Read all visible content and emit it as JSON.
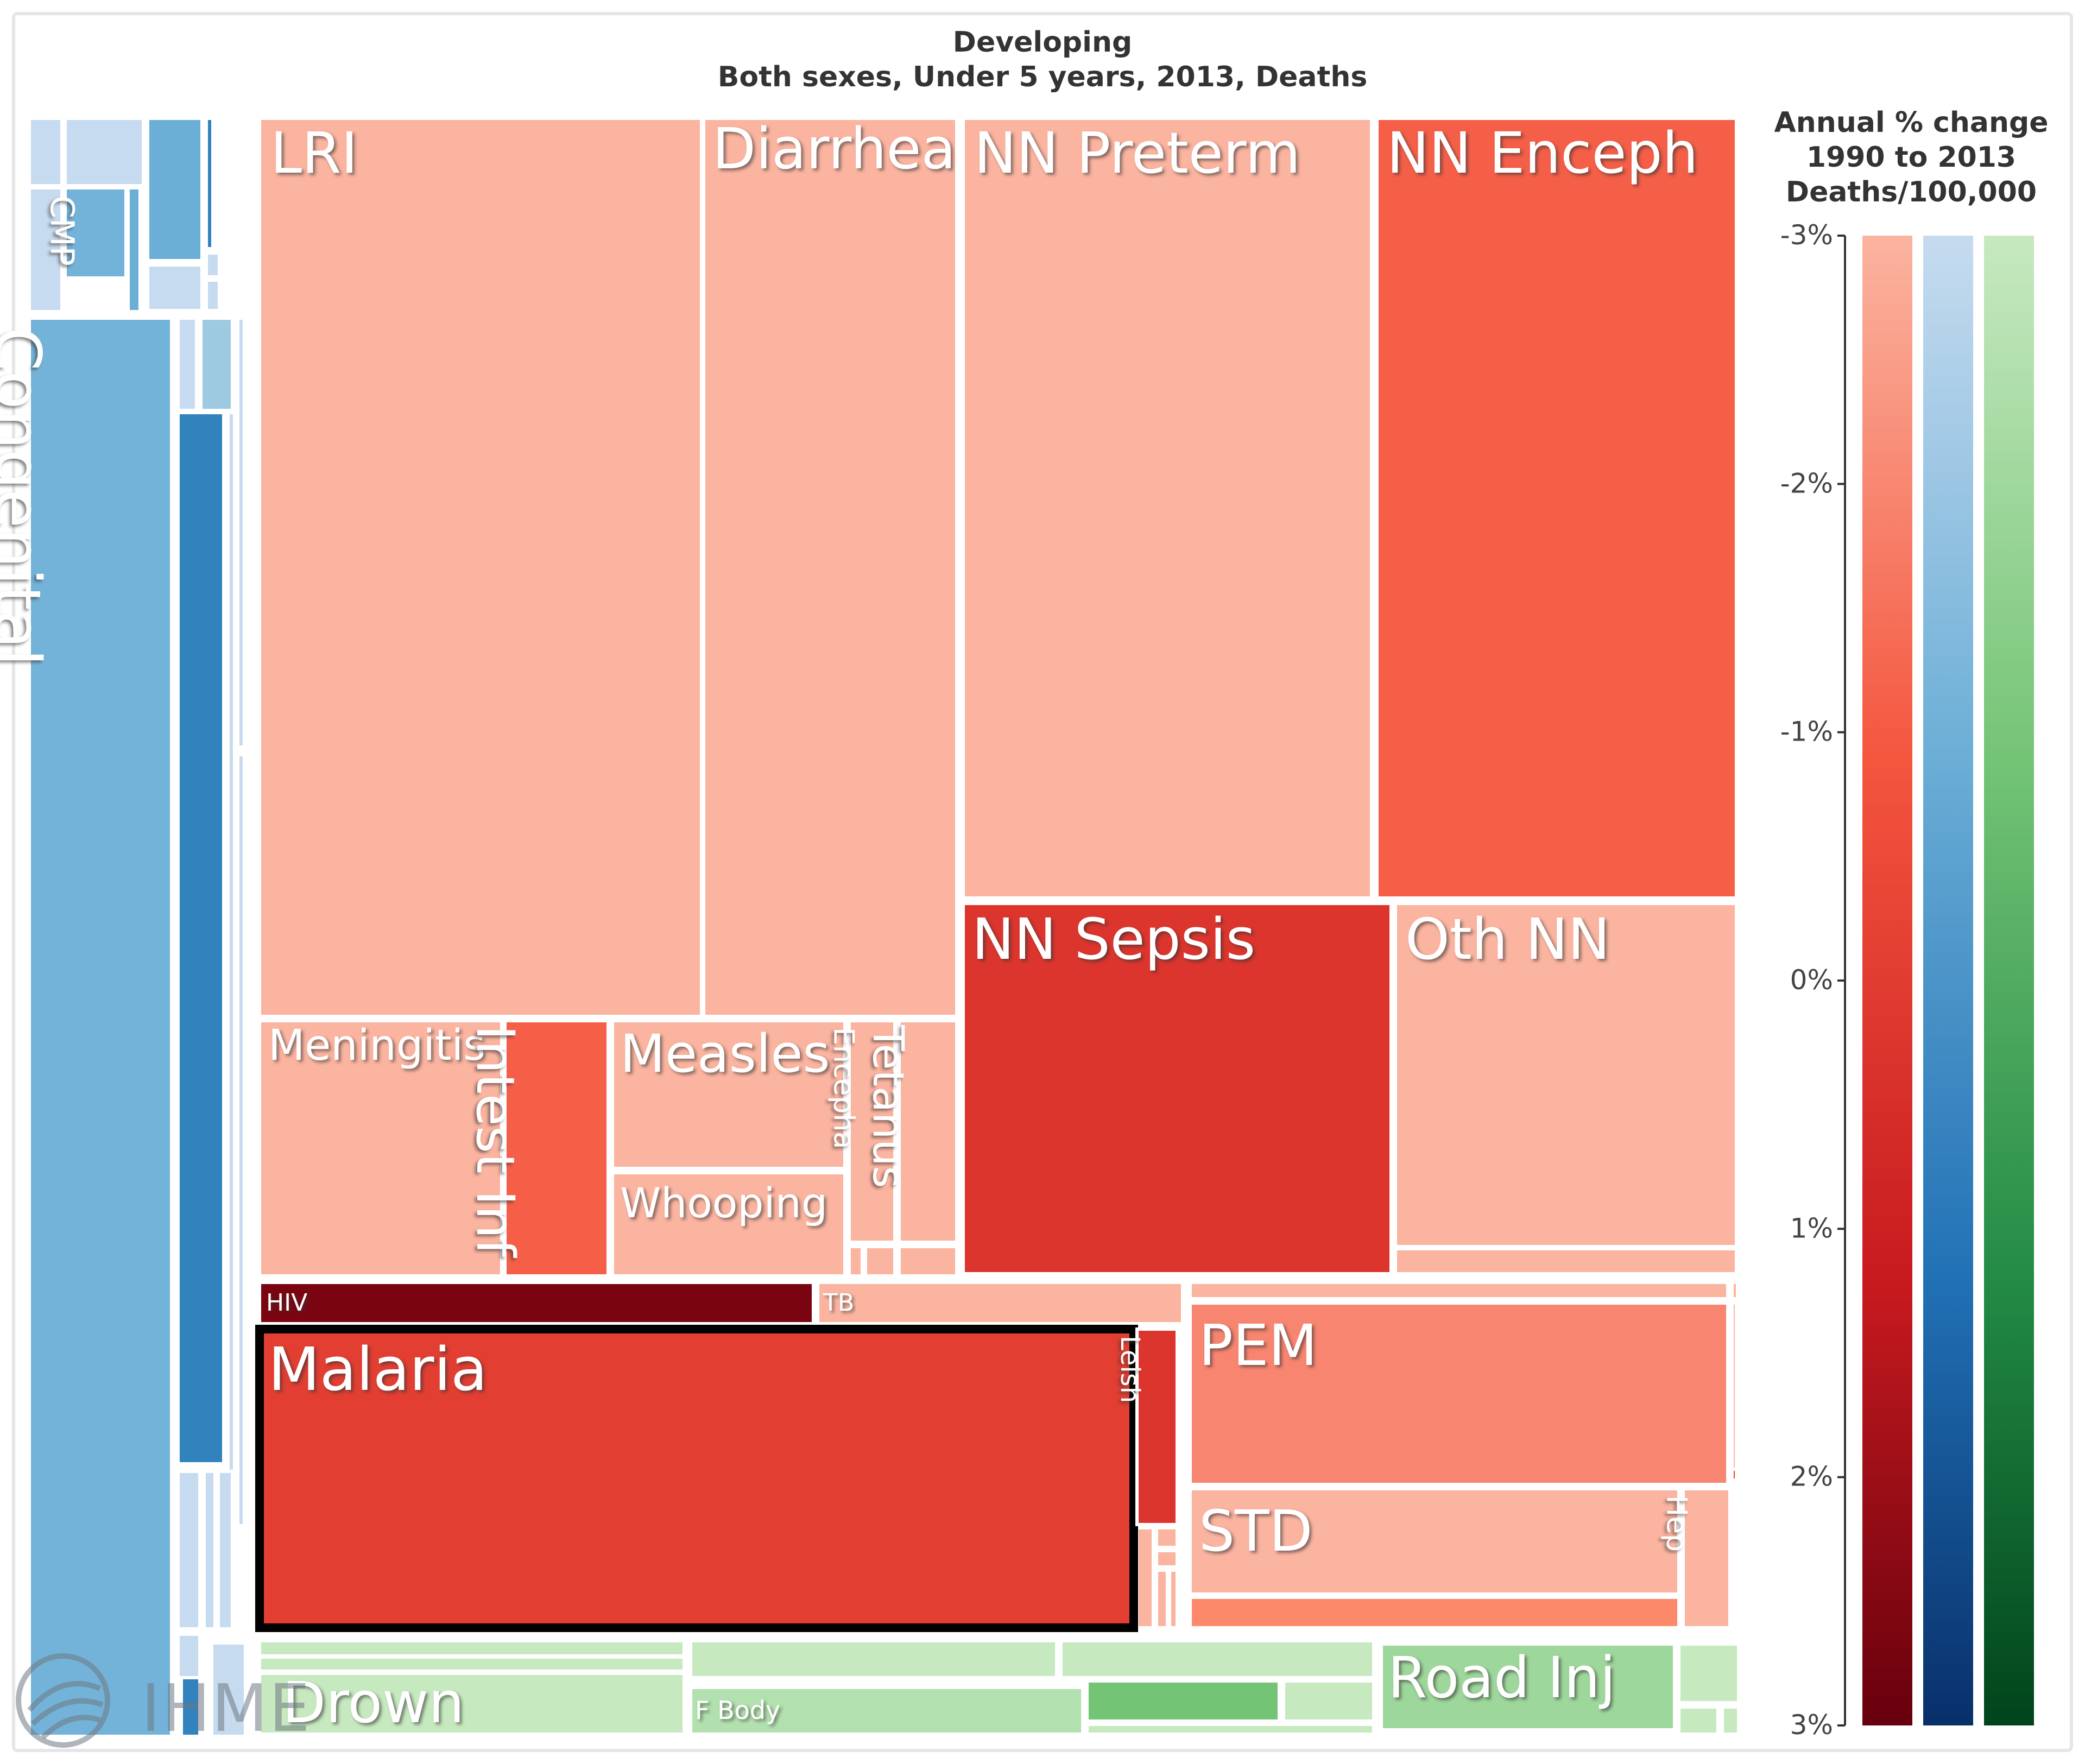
{
  "chart_data": {
    "type": "treemap",
    "title": "Developing",
    "subtitle": "Both sexes, Under 5 years, 2013, Deaths",
    "legend": {
      "title_lines": [
        "Annual % change",
        "1990 to 2013",
        "Deaths/100,000"
      ],
      "ticks": [
        "-3%",
        "-2%",
        "-1%",
        "0%",
        "1%",
        "2%",
        "3%"
      ],
      "tick_values": [
        -3,
        -2,
        -1,
        0,
        1,
        2,
        3
      ],
      "range": [
        -3,
        3
      ],
      "scales": [
        {
          "name": "red",
          "colors": [
            "#fbb4a0",
            "#f4563e",
            "#c81a1f",
            "#67000d"
          ]
        },
        {
          "name": "blue",
          "colors": [
            "#c6dbef",
            "#6baed6",
            "#2171b5",
            "#08306b"
          ]
        },
        {
          "name": "green",
          "colors": [
            "#c7e9c0",
            "#74c476",
            "#238b45",
            "#00441b"
          ]
        }
      ]
    },
    "labeled_causes": [
      {
        "label": "LRI",
        "group": "communicable",
        "annual_pct_change": -3.0
      },
      {
        "label": "Diarrhea",
        "group": "communicable",
        "annual_pct_change": -3.0
      },
      {
        "label": "NN Preterm",
        "group": "communicable",
        "annual_pct_change": -3.0
      },
      {
        "label": "NN Enceph",
        "group": "communicable",
        "annual_pct_change": -1.2
      },
      {
        "label": "NN Sepsis",
        "group": "communicable",
        "annual_pct_change": 0.1
      },
      {
        "label": "Oth NN",
        "group": "communicable",
        "annual_pct_change": -3.0
      },
      {
        "label": "Meningitis",
        "group": "communicable",
        "annual_pct_change": -3.0
      },
      {
        "label": "Intest Inf",
        "group": "communicable",
        "annual_pct_change": -1.2
      },
      {
        "label": "Measles",
        "group": "communicable",
        "annual_pct_change": -3.0
      },
      {
        "label": "Whooping",
        "group": "communicable",
        "annual_pct_change": -3.0
      },
      {
        "label": "Encepha",
        "group": "communicable",
        "annual_pct_change": -3.0
      },
      {
        "label": "Tetanus",
        "group": "communicable",
        "annual_pct_change": -3.0
      },
      {
        "label": "HIV",
        "group": "communicable",
        "annual_pct_change": 2.6
      },
      {
        "label": "TB",
        "group": "communicable",
        "annual_pct_change": -3.0
      },
      {
        "label": "Malaria",
        "group": "communicable",
        "annual_pct_change": -0.2
      },
      {
        "label": "Leish",
        "group": "communicable",
        "annual_pct_change": 0.1
      },
      {
        "label": "PEM",
        "group": "communicable",
        "annual_pct_change": -2.0
      },
      {
        "label": "STD",
        "group": "communicable",
        "annual_pct_change": -3.0
      },
      {
        "label": "Hep",
        "group": "communicable",
        "annual_pct_change": -3.0
      },
      {
        "label": "Congenital",
        "group": "non-communicable",
        "annual_pct_change": -1.2
      },
      {
        "label": "CMP",
        "group": "non-communicable",
        "annual_pct_change": -1.2
      },
      {
        "label": "Drown",
        "group": "injuries",
        "annual_pct_change": -3.0
      },
      {
        "label": "F Body",
        "group": "injuries",
        "annual_pct_change": -2.5
      },
      {
        "label": "Road Inj",
        "group": "injuries",
        "annual_pct_change": -2.0
      }
    ],
    "highlighted": "Malaria",
    "watermark": "IHME"
  }
}
